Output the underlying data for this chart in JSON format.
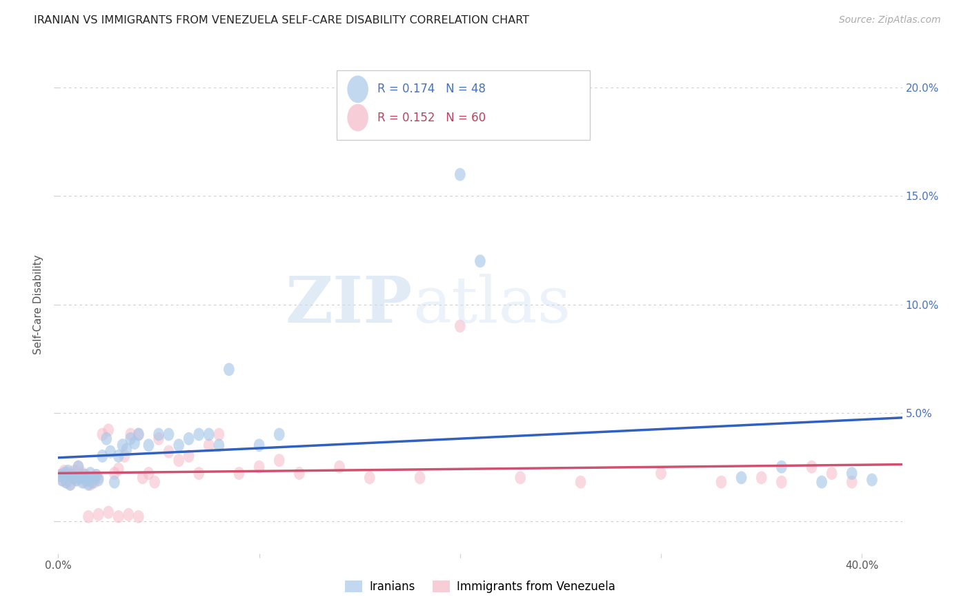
{
  "title": "IRANIAN VS IMMIGRANTS FROM VENEZUELA SELF-CARE DISABILITY CORRELATION CHART",
  "source": "Source: ZipAtlas.com",
  "ylabel": "Self-Care Disability",
  "xlim": [
    0.0,
    0.42
  ],
  "ylim": [
    -0.015,
    0.215
  ],
  "y_ticks": [
    0.0,
    0.05,
    0.1,
    0.15,
    0.2
  ],
  "y_tick_labels": [
    "",
    "5.0%",
    "10.0%",
    "15.0%",
    "20.0%"
  ],
  "x_ticks": [
    0.0,
    0.1,
    0.2,
    0.3,
    0.4
  ],
  "iranians_R": 0.174,
  "iranians_N": 48,
  "venezuela_R": 0.152,
  "venezuela_N": 60,
  "iranians_color": "#a8c8e8",
  "venezuela_color": "#f5b8c8",
  "iranians_line_color": "#3060c0",
  "venezuela_line_color": "#d05070",
  "watermark_zip": "ZIP",
  "watermark_atlas": "atlas",
  "iranians_x": [
    0.001,
    0.002,
    0.003,
    0.004,
    0.005,
    0.006,
    0.007,
    0.008,
    0.009,
    0.01,
    0.011,
    0.012,
    0.013,
    0.014,
    0.015,
    0.016,
    0.017,
    0.018,
    0.019,
    0.02,
    0.022,
    0.024,
    0.026,
    0.028,
    0.03,
    0.032,
    0.034,
    0.036,
    0.038,
    0.04,
    0.045,
    0.05,
    0.055,
    0.06,
    0.065,
    0.07,
    0.075,
    0.08,
    0.085,
    0.1,
    0.11,
    0.2,
    0.21,
    0.34,
    0.36,
    0.38,
    0.395,
    0.405
  ],
  "iranians_y": [
    0.021,
    0.019,
    0.022,
    0.018,
    0.023,
    0.017,
    0.021,
    0.02,
    0.019,
    0.025,
    0.02,
    0.018,
    0.021,
    0.019,
    0.017,
    0.022,
    0.018,
    0.02,
    0.021,
    0.019,
    0.03,
    0.038,
    0.032,
    0.018,
    0.03,
    0.035,
    0.033,
    0.038,
    0.036,
    0.04,
    0.035,
    0.04,
    0.04,
    0.035,
    0.038,
    0.04,
    0.04,
    0.035,
    0.07,
    0.035,
    0.04,
    0.16,
    0.12,
    0.02,
    0.025,
    0.018,
    0.022,
    0.019
  ],
  "venezuela_x": [
    0.001,
    0.002,
    0.003,
    0.004,
    0.005,
    0.006,
    0.007,
    0.008,
    0.009,
    0.01,
    0.011,
    0.012,
    0.013,
    0.014,
    0.015,
    0.016,
    0.017,
    0.018,
    0.019,
    0.02,
    0.022,
    0.025,
    0.028,
    0.03,
    0.033,
    0.036,
    0.04,
    0.042,
    0.045,
    0.048,
    0.05,
    0.055,
    0.06,
    0.065,
    0.07,
    0.075,
    0.08,
    0.09,
    0.1,
    0.11,
    0.12,
    0.14,
    0.155,
    0.18,
    0.2,
    0.23,
    0.26,
    0.3,
    0.33,
    0.35,
    0.36,
    0.375,
    0.385,
    0.395,
    0.015,
    0.02,
    0.025,
    0.03,
    0.035,
    0.04
  ],
  "venezuela_y": [
    0.021,
    0.019,
    0.023,
    0.018,
    0.022,
    0.017,
    0.02,
    0.023,
    0.019,
    0.025,
    0.02,
    0.022,
    0.018,
    0.021,
    0.019,
    0.017,
    0.02,
    0.018,
    0.021,
    0.02,
    0.04,
    0.042,
    0.022,
    0.024,
    0.03,
    0.04,
    0.04,
    0.02,
    0.022,
    0.018,
    0.038,
    0.032,
    0.028,
    0.03,
    0.022,
    0.035,
    0.04,
    0.022,
    0.025,
    0.028,
    0.022,
    0.025,
    0.02,
    0.02,
    0.09,
    0.02,
    0.018,
    0.022,
    0.018,
    0.02,
    0.018,
    0.025,
    0.022,
    0.018,
    0.002,
    0.003,
    0.004,
    0.002,
    0.003,
    0.002
  ]
}
